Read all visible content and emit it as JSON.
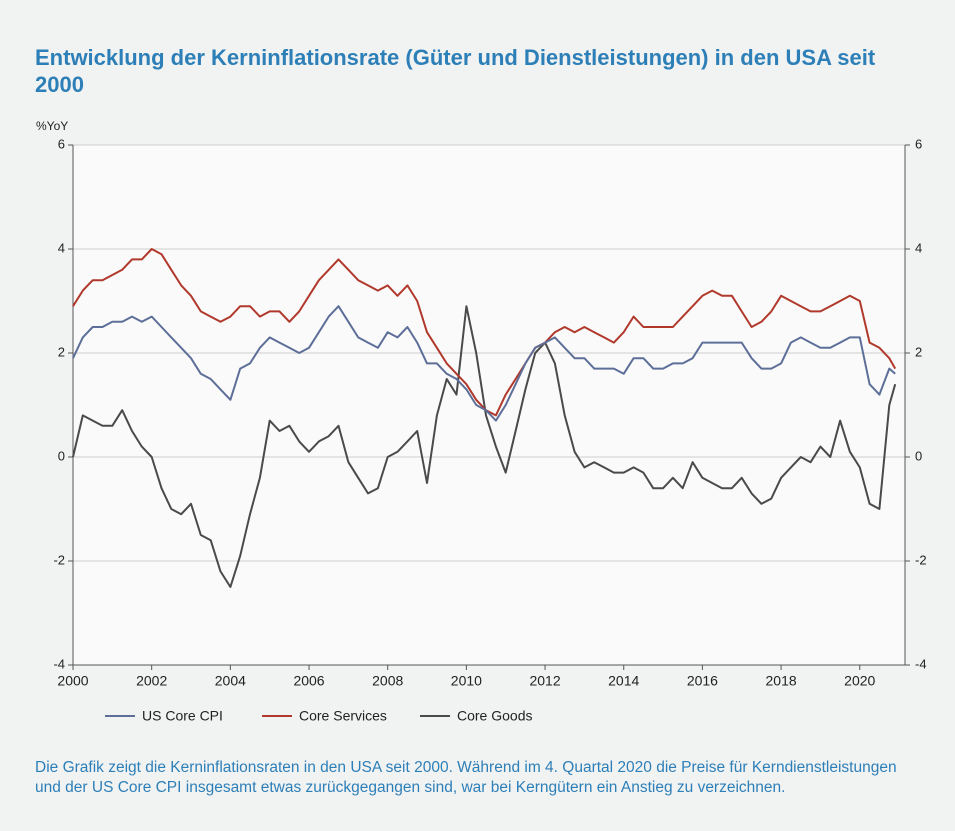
{
  "chart_data": {
    "type": "line",
    "title": "Entwicklung der Kerninflationsrate (Güter und Dienstleistungen) in den USA seit 2000",
    "ylabel": "%YoY",
    "caption": "Die Grafik zeigt die Kerninflationsraten in den USA seit 2000. Während im 4. Quartal 2020 die Preise für Kerndienstleistungen und der US Core CPI insgesamt etwas zurückgegangen sind, war bei Kerngütern ein Anstieg zu verzeichnen.",
    "x": [
      2000,
      2000.25,
      2000.5,
      2000.75,
      2001,
      2001.25,
      2001.5,
      2001.75,
      2002,
      2002.25,
      2002.5,
      2002.75,
      2003,
      2003.25,
      2003.5,
      2003.75,
      2004,
      2004.25,
      2004.5,
      2004.75,
      2005,
      2005.25,
      2005.5,
      2005.75,
      2006,
      2006.25,
      2006.5,
      2006.75,
      2007,
      2007.25,
      2007.5,
      2007.75,
      2008,
      2008.25,
      2008.5,
      2008.75,
      2009,
      2009.25,
      2009.5,
      2009.75,
      2010,
      2010.25,
      2010.5,
      2010.75,
      2011,
      2011.25,
      2011.5,
      2011.75,
      2012,
      2012.25,
      2012.5,
      2012.75,
      2013,
      2013.25,
      2013.5,
      2013.75,
      2014,
      2014.25,
      2014.5,
      2014.75,
      2015,
      2015.25,
      2015.5,
      2015.75,
      2016,
      2016.25,
      2016.5,
      2016.75,
      2017,
      2017.25,
      2017.5,
      2017.75,
      2018,
      2018.25,
      2018.5,
      2018.75,
      2019,
      2019.25,
      2019.5,
      2019.75,
      2020,
      2020.25,
      2020.5,
      2020.75,
      2020.9
    ],
    "series": [
      {
        "name": "US Core CPI",
        "color": "#5d6f98",
        "values": [
          1.9,
          2.3,
          2.5,
          2.5,
          2.6,
          2.6,
          2.7,
          2.6,
          2.7,
          2.5,
          2.3,
          2.1,
          1.9,
          1.6,
          1.5,
          1.3,
          1.1,
          1.7,
          1.8,
          2.1,
          2.3,
          2.2,
          2.1,
          2.0,
          2.1,
          2.4,
          2.7,
          2.9,
          2.6,
          2.3,
          2.2,
          2.1,
          2.4,
          2.3,
          2.5,
          2.2,
          1.8,
          1.8,
          1.6,
          1.5,
          1.3,
          1.0,
          0.9,
          0.7,
          1.0,
          1.4,
          1.8,
          2.1,
          2.2,
          2.3,
          2.1,
          1.9,
          1.9,
          1.7,
          1.7,
          1.7,
          1.6,
          1.9,
          1.9,
          1.7,
          1.7,
          1.8,
          1.8,
          1.9,
          2.2,
          2.2,
          2.2,
          2.2,
          2.2,
          1.9,
          1.7,
          1.7,
          1.8,
          2.2,
          2.3,
          2.2,
          2.1,
          2.1,
          2.2,
          2.3,
          2.3,
          1.4,
          1.2,
          1.7,
          1.6
        ]
      },
      {
        "name": "Core Services",
        "color": "#b0392c",
        "values": [
          2.9,
          3.2,
          3.4,
          3.4,
          3.5,
          3.6,
          3.8,
          3.8,
          4.0,
          3.9,
          3.6,
          3.3,
          3.1,
          2.8,
          2.7,
          2.6,
          2.7,
          2.9,
          2.9,
          2.7,
          2.8,
          2.8,
          2.6,
          2.8,
          3.1,
          3.4,
          3.6,
          3.8,
          3.6,
          3.4,
          3.3,
          3.2,
          3.3,
          3.1,
          3.3,
          3.0,
          2.4,
          2.1,
          1.8,
          1.6,
          1.4,
          1.1,
          0.9,
          0.8,
          1.2,
          1.5,
          1.8,
          2.1,
          2.2,
          2.4,
          2.5,
          2.4,
          2.5,
          2.4,
          2.3,
          2.2,
          2.4,
          2.7,
          2.5,
          2.5,
          2.5,
          2.5,
          2.7,
          2.9,
          3.1,
          3.2,
          3.1,
          3.1,
          2.8,
          2.5,
          2.6,
          2.8,
          3.1,
          3.0,
          2.9,
          2.8,
          2.8,
          2.9,
          3.0,
          3.1,
          3.0,
          2.2,
          2.1,
          1.9,
          1.7
        ]
      },
      {
        "name": "Core Goods",
        "color": "#4a4a4a",
        "values": [
          0.0,
          0.8,
          0.7,
          0.6,
          0.6,
          0.9,
          0.5,
          0.2,
          0.0,
          -0.6,
          -1.0,
          -1.1,
          -0.9,
          -1.5,
          -1.6,
          -2.2,
          -2.5,
          -1.9,
          -1.1,
          -0.4,
          0.7,
          0.5,
          0.6,
          0.3,
          0.1,
          0.3,
          0.4,
          0.6,
          -0.1,
          -0.4,
          -0.7,
          -0.6,
          0.0,
          0.1,
          0.3,
          0.5,
          -0.5,
          0.8,
          1.5,
          1.2,
          2.9,
          2.0,
          0.8,
          0.2,
          -0.3,
          0.5,
          1.3,
          2.0,
          2.2,
          1.8,
          0.8,
          0.1,
          -0.2,
          -0.1,
          -0.2,
          -0.3,
          -0.3,
          -0.2,
          -0.3,
          -0.6,
          -0.6,
          -0.4,
          -0.6,
          -0.1,
          -0.4,
          -0.5,
          -0.6,
          -0.6,
          -0.4,
          -0.7,
          -0.9,
          -0.8,
          -0.4,
          -0.2,
          0.0,
          -0.1,
          0.2,
          0.0,
          0.7,
          0.1,
          -0.2,
          -0.9,
          -1.0,
          1.0,
          1.4
        ]
      }
    ],
    "xlim": [
      2000,
      2021.15
    ],
    "xticks": [
      2000,
      2002,
      2004,
      2006,
      2008,
      2010,
      2012,
      2014,
      2016,
      2018,
      2020
    ],
    "ylim": [
      -4,
      6
    ],
    "yticks": [
      -4,
      -2,
      0,
      2,
      4,
      6
    ],
    "y2lim": [
      -4,
      6
    ],
    "y2ticks": [
      -4,
      -2,
      0,
      2,
      4,
      6
    ],
    "grid": true,
    "legend": "bottom"
  }
}
